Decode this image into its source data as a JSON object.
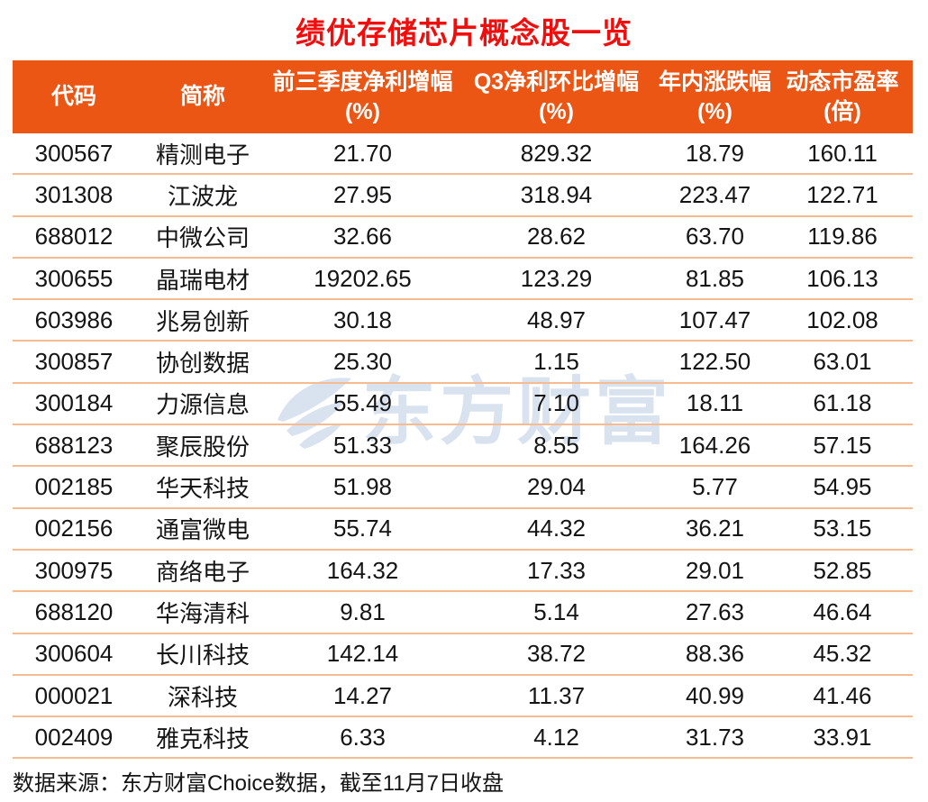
{
  "title": "绩优存储芯片概念股一览",
  "colors": {
    "title_red": "#f20d0d",
    "header_bg": "#ec5615",
    "header_text": "#ffffff",
    "row_divider": "#f6bb90",
    "cell_text": "#141414",
    "watermark_blue": "#d9e3f0"
  },
  "watermark": {
    "logo": "eastmoney-leaf-icon",
    "text": "东方财富"
  },
  "footer": {
    "source_note": "数据来源：东方财富Choice数据，截至11月7日收盘"
  },
  "table": {
    "columns": [
      {
        "label": "代码",
        "unit": ""
      },
      {
        "label": "简称",
        "unit": ""
      },
      {
        "label": "前三季度净利增幅",
        "unit": "(%)"
      },
      {
        "label": "Q3净利环比增幅",
        "unit": "(%)"
      },
      {
        "label": "年内涨跌幅",
        "unit": "(%)"
      },
      {
        "label": "动态市盈率",
        "unit": "(倍)"
      }
    ],
    "rows": [
      [
        "300567",
        "精测电子",
        "21.70",
        "829.32",
        "18.79",
        "160.11"
      ],
      [
        "301308",
        "江波龙",
        "27.95",
        "318.94",
        "223.47",
        "122.71"
      ],
      [
        "688012",
        "中微公司",
        "32.66",
        "28.62",
        "63.70",
        "119.86"
      ],
      [
        "300655",
        "晶瑞电材",
        "19202.65",
        "123.29",
        "81.85",
        "106.13"
      ],
      [
        "603986",
        "兆易创新",
        "30.18",
        "48.97",
        "107.47",
        "102.08"
      ],
      [
        "300857",
        "协创数据",
        "25.30",
        "1.15",
        "122.50",
        "63.01"
      ],
      [
        "300184",
        "力源信息",
        "55.49",
        "7.10",
        "18.11",
        "61.18"
      ],
      [
        "688123",
        "聚辰股份",
        "51.33",
        "8.55",
        "164.26",
        "57.15"
      ],
      [
        "002185",
        "华天科技",
        "51.98",
        "29.04",
        "5.77",
        "54.95"
      ],
      [
        "002156",
        "通富微电",
        "55.74",
        "44.32",
        "36.21",
        "53.15"
      ],
      [
        "300975",
        "商络电子",
        "164.32",
        "17.33",
        "29.01",
        "52.85"
      ],
      [
        "688120",
        "华海清科",
        "9.81",
        "5.14",
        "27.63",
        "46.64"
      ],
      [
        "300604",
        "长川科技",
        "142.14",
        "38.72",
        "88.36",
        "45.32"
      ],
      [
        "000021",
        "深科技",
        "14.27",
        "11.37",
        "40.99",
        "41.46"
      ],
      [
        "002409",
        "雅克科技",
        "6.33",
        "4.12",
        "31.73",
        "33.91"
      ]
    ]
  },
  "chart_data": {
    "type": "table",
    "title": "绩优存储芯片概念股一览",
    "columns": [
      "代码",
      "简称",
      "前三季度净利增幅(%)",
      "Q3净利环比增幅(%)",
      "年内涨跌幅(%)",
      "动态市盈率(倍)"
    ],
    "rows": [
      [
        "300567",
        "精测电子",
        21.7,
        829.32,
        18.79,
        160.11
      ],
      [
        "301308",
        "江波龙",
        27.95,
        318.94,
        223.47,
        122.71
      ],
      [
        "688012",
        "中微公司",
        32.66,
        28.62,
        63.7,
        119.86
      ],
      [
        "300655",
        "晶瑞电材",
        19202.65,
        123.29,
        81.85,
        106.13
      ],
      [
        "603986",
        "兆易创新",
        30.18,
        48.97,
        107.47,
        102.08
      ],
      [
        "300857",
        "协创数据",
        25.3,
        1.15,
        122.5,
        63.01
      ],
      [
        "300184",
        "力源信息",
        55.49,
        7.1,
        18.11,
        61.18
      ],
      [
        "688123",
        "聚辰股份",
        51.33,
        8.55,
        164.26,
        57.15
      ],
      [
        "002185",
        "华天科技",
        51.98,
        29.04,
        5.77,
        54.95
      ],
      [
        "002156",
        "通富微电",
        55.74,
        44.32,
        36.21,
        53.15
      ],
      [
        "300975",
        "商络电子",
        164.32,
        17.33,
        29.01,
        52.85
      ],
      [
        "688120",
        "华海清科",
        9.81,
        5.14,
        27.63,
        46.64
      ],
      [
        "300604",
        "长川科技",
        142.14,
        38.72,
        88.36,
        45.32
      ],
      [
        "000021",
        "深科技",
        14.27,
        11.37,
        40.99,
        41.46
      ],
      [
        "002409",
        "雅克科技",
        6.33,
        4.12,
        31.73,
        33.91
      ]
    ],
    "source": "数据来源：东方财富Choice数据，截至11月7日收盘",
    "watermark": "东方财富"
  }
}
